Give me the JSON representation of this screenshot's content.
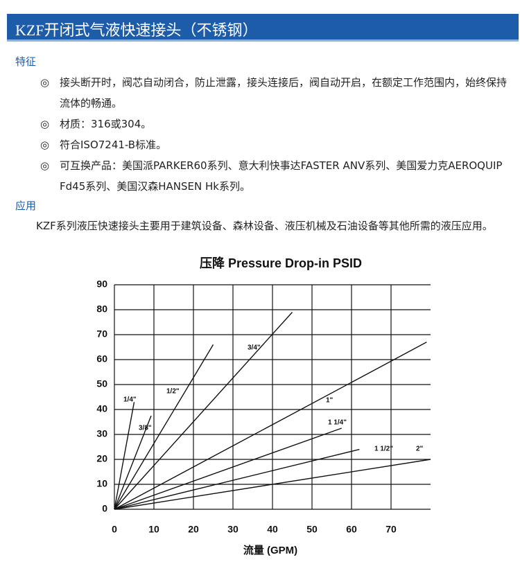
{
  "header": {
    "title": "KZF开闭式气液快速接头（不锈钢）"
  },
  "features": {
    "heading": "特征",
    "items": [
      {
        "marker": "◎",
        "text": "接头断开时，阀芯自动闭合，防止泄露，接头连接后，阀自动开启，在额定工作范围内，始终保持流体的畅通。"
      },
      {
        "marker": "◎",
        "text": "材质：316或304。"
      },
      {
        "marker": "◎",
        "text": "符合ISO7241-B标准。"
      },
      {
        "marker": "◎",
        "text": "可互换产品：美国派PARKER60系列、意大利快事达FASTER ANV系列、美国爱力克AEROQUIP Fd45系列、美国汉森HANSEN Hk系列。"
      }
    ]
  },
  "application": {
    "heading": "应用",
    "text": "KZF系列液压快速接头主要用于建筑设备、森林设备、液压机械及石油设备等其他所需的液压应用。"
  },
  "chart_data": {
    "type": "line",
    "title": "压降 Pressure Drop-in PSID",
    "x_label": "流量 (GPM)",
    "xlim": [
      0,
      80
    ],
    "ylim": [
      0,
      90
    ],
    "xticks": [
      0,
      10,
      20,
      30,
      40,
      50,
      60,
      70
    ],
    "yticks": [
      0,
      10,
      20,
      30,
      40,
      50,
      60,
      70,
      80,
      90
    ],
    "grid": true,
    "series": [
      {
        "name": "1/4\"",
        "color": "#111111",
        "x": [
          0,
          5
        ],
        "values": [
          0,
          43
        ]
      },
      {
        "name": "3/8\"",
        "color": "#111111",
        "x": [
          0,
          9.3
        ],
        "values": [
          0,
          37.5
        ]
      },
      {
        "name": "1/2\"",
        "color": "#111111",
        "x": [
          0,
          25
        ],
        "values": [
          0,
          66
        ]
      },
      {
        "name": "3/4\"",
        "color": "#111111",
        "x": [
          0,
          45
        ],
        "values": [
          0,
          79
        ]
      },
      {
        "name": "1\"",
        "color": "#111111",
        "x": [
          0,
          79
        ],
        "values": [
          0,
          67
        ]
      },
      {
        "name": "1 1/4\"",
        "color": "#111111",
        "x": [
          0,
          57.5
        ],
        "values": [
          0,
          32.5
        ]
      },
      {
        "name": "1 1/2\"",
        "color": "#111111",
        "x": [
          0,
          62
        ],
        "values": [
          0,
          24
        ]
      },
      {
        "name": "2\"",
        "color": "#111111",
        "x": [
          0,
          80
        ],
        "values": [
          0,
          20
        ]
      }
    ]
  }
}
